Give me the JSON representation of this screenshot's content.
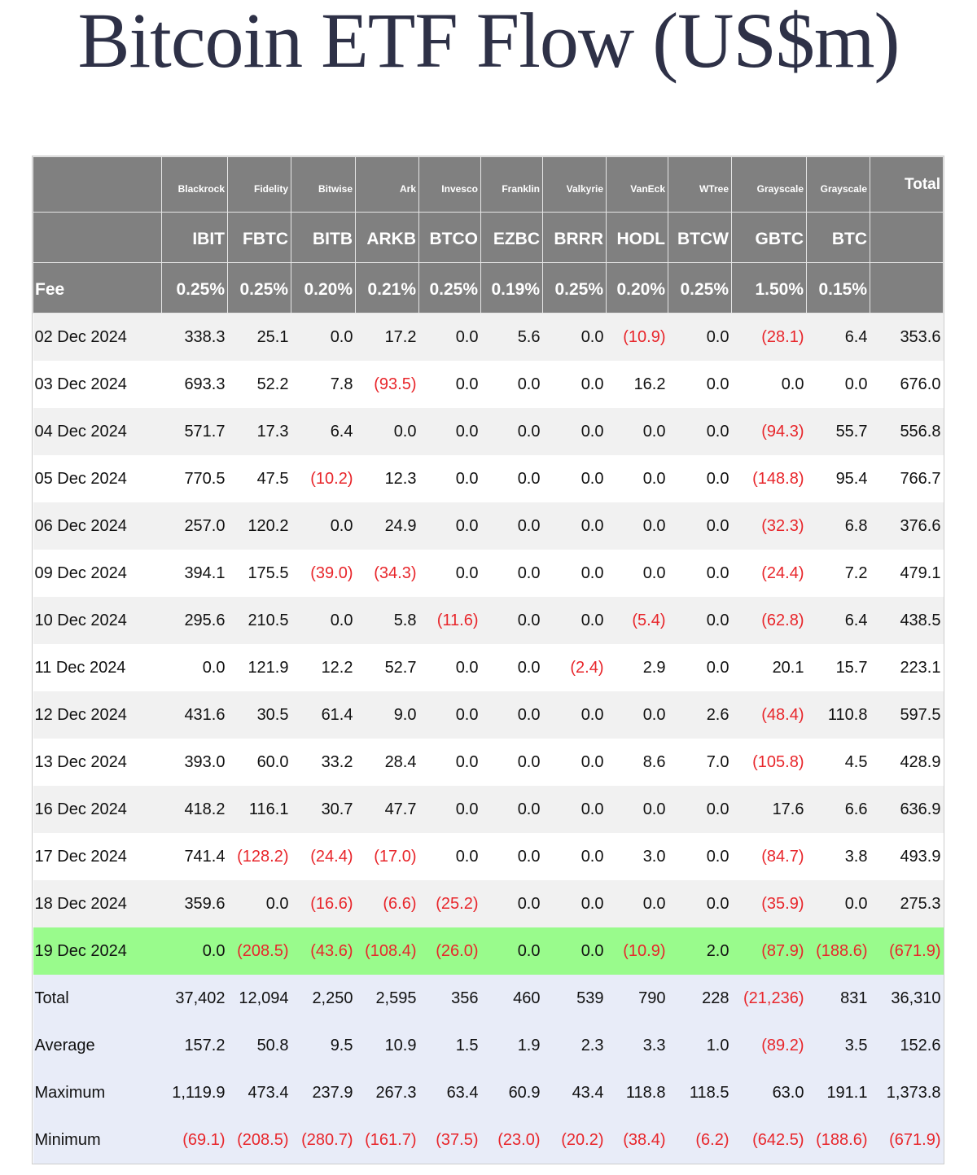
{
  "title": "Bitcoin ETF Flow (US$m)",
  "table": {
    "issuers": [
      "Blackrock",
      "Fidelity",
      "Bitwise",
      "Ark",
      "Invesco",
      "Franklin",
      "Valkyrie",
      "VanEck",
      "WTree",
      "Grayscale",
      "Grayscale"
    ],
    "total_header": "Total",
    "tickers": [
      "IBIT",
      "FBTC",
      "BITB",
      "ARKB",
      "BTCO",
      "EZBC",
      "BRRR",
      "HODL",
      "BTCW",
      "GBTC",
      "BTC"
    ],
    "fee_label": "Fee",
    "fees": [
      "0.25%",
      "0.25%",
      "0.20%",
      "0.21%",
      "0.25%",
      "0.19%",
      "0.25%",
      "0.20%",
      "0.25%",
      "1.50%",
      "0.15%"
    ],
    "rows": [
      [
        "02 Dec 2024",
        "338.3",
        "25.1",
        "0.0",
        "17.2",
        "0.0",
        "5.6",
        "0.0",
        "(10.9)",
        "0.0",
        "(28.1)",
        "6.4",
        "353.6"
      ],
      [
        "03 Dec 2024",
        "693.3",
        "52.2",
        "7.8",
        "(93.5)",
        "0.0",
        "0.0",
        "0.0",
        "16.2",
        "0.0",
        "0.0",
        "0.0",
        "676.0"
      ],
      [
        "04 Dec 2024",
        "571.7",
        "17.3",
        "6.4",
        "0.0",
        "0.0",
        "0.0",
        "0.0",
        "0.0",
        "0.0",
        "(94.3)",
        "55.7",
        "556.8"
      ],
      [
        "05 Dec 2024",
        "770.5",
        "47.5",
        "(10.2)",
        "12.3",
        "0.0",
        "0.0",
        "0.0",
        "0.0",
        "0.0",
        "(148.8)",
        "95.4",
        "766.7"
      ],
      [
        "06 Dec 2024",
        "257.0",
        "120.2",
        "0.0",
        "24.9",
        "0.0",
        "0.0",
        "0.0",
        "0.0",
        "0.0",
        "(32.3)",
        "6.8",
        "376.6"
      ],
      [
        "09 Dec 2024",
        "394.1",
        "175.5",
        "(39.0)",
        "(34.3)",
        "0.0",
        "0.0",
        "0.0",
        "0.0",
        "0.0",
        "(24.4)",
        "7.2",
        "479.1"
      ],
      [
        "10 Dec 2024",
        "295.6",
        "210.5",
        "0.0",
        "5.8",
        "(11.6)",
        "0.0",
        "0.0",
        "(5.4)",
        "0.0",
        "(62.8)",
        "6.4",
        "438.5"
      ],
      [
        "11 Dec 2024",
        "0.0",
        "121.9",
        "12.2",
        "52.7",
        "0.0",
        "0.0",
        "(2.4)",
        "2.9",
        "0.0",
        "20.1",
        "15.7",
        "223.1"
      ],
      [
        "12 Dec 2024",
        "431.6",
        "30.5",
        "61.4",
        "9.0",
        "0.0",
        "0.0",
        "0.0",
        "0.0",
        "2.6",
        "(48.4)",
        "110.8",
        "597.5"
      ],
      [
        "13 Dec 2024",
        "393.0",
        "60.0",
        "33.2",
        "28.4",
        "0.0",
        "0.0",
        "0.0",
        "8.6",
        "7.0",
        "(105.8)",
        "4.5",
        "428.9"
      ],
      [
        "16 Dec 2024",
        "418.2",
        "116.1",
        "30.7",
        "47.7",
        "0.0",
        "0.0",
        "0.0",
        "0.0",
        "0.0",
        "17.6",
        "6.6",
        "636.9"
      ],
      [
        "17 Dec 2024",
        "741.4",
        "(128.2)",
        "(24.4)",
        "(17.0)",
        "0.0",
        "0.0",
        "0.0",
        "3.0",
        "0.0",
        "(84.7)",
        "3.8",
        "493.9"
      ],
      [
        "18 Dec 2024",
        "359.6",
        "0.0",
        "(16.6)",
        "(6.6)",
        "(25.2)",
        "0.0",
        "0.0",
        "0.0",
        "0.0",
        "(35.9)",
        "0.0",
        "275.3"
      ],
      [
        "19 Dec 2024",
        "0.0",
        "(208.5)",
        "(43.6)",
        "(108.4)",
        "(26.0)",
        "0.0",
        "0.0",
        "(10.9)",
        "2.0",
        "(87.9)",
        "(188.6)",
        "(671.9)"
      ]
    ],
    "highlighted_row": 13,
    "summary": [
      [
        "Total",
        "37,402",
        "12,094",
        "2,250",
        "2,595",
        "356",
        "460",
        "539",
        "790",
        "228",
        "(21,236)",
        "831",
        "36,310"
      ],
      [
        "Average",
        "157.2",
        "50.8",
        "9.5",
        "10.9",
        "1.5",
        "1.9",
        "2.3",
        "3.3",
        "1.0",
        "(89.2)",
        "3.5",
        "152.6"
      ],
      [
        "Maximum",
        "1,119.9",
        "473.4",
        "237.9",
        "267.3",
        "63.4",
        "60.9",
        "43.4",
        "118.8",
        "118.5",
        "63.0",
        "191.1",
        "1,373.8"
      ],
      [
        "Minimum",
        "(69.1)",
        "(208.5)",
        "(280.7)",
        "(161.7)",
        "(37.5)",
        "(23.0)",
        "(20.2)",
        "(38.4)",
        "(6.2)",
        "(642.5)",
        "(188.6)",
        "(671.9)"
      ]
    ]
  }
}
